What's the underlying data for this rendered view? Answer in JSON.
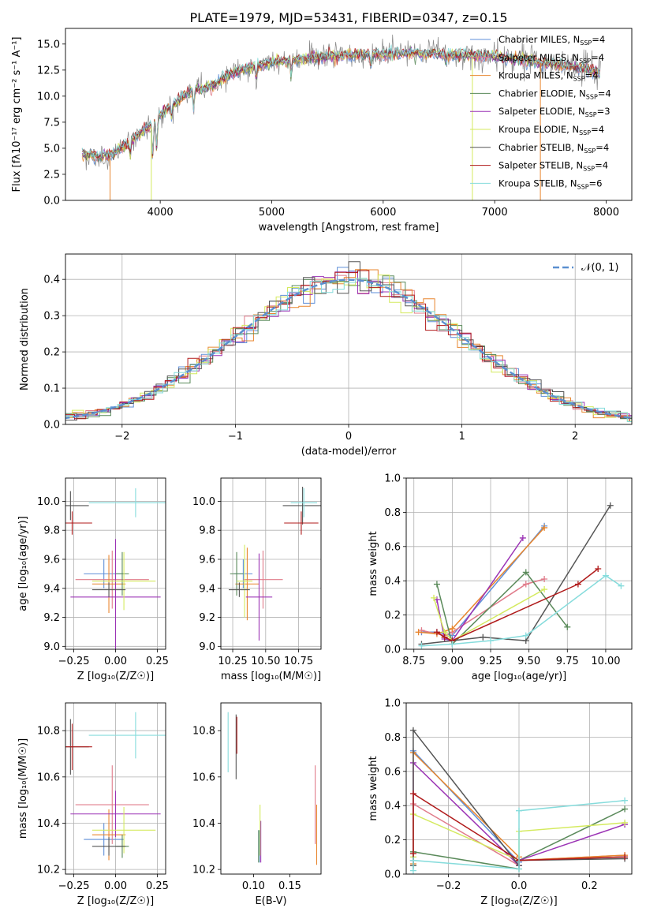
{
  "colors": {
    "chab_miles": "#5f8fd8",
    "salp_miles": "#e07b8a",
    "krou_miles": "#e8862e",
    "chab_elodie": "#5a8a5a",
    "salp_elodie": "#9b33b5",
    "krou_elodie": "#d4ea5e",
    "chab_stelib": "#555555",
    "salp_stelib": "#b01a1a",
    "krou_stelib": "#86dcdc",
    "data_gray": "#888888",
    "normal_curve": "#5b8fd0"
  },
  "chart_data": [
    {
      "id": "spectrum",
      "type": "line",
      "title": "PLATE=1979, MJD=53431, FIBERID=0347, z=0.15",
      "xlabel": "wavelength [Angstrom, rest frame]",
      "ylabel": "Flux [fλ10⁻¹⁷ erg cm⁻² s⁻¹ A⁻¹]",
      "xlim": [
        3150,
        8230
      ],
      "ylim": [
        0,
        16.5
      ],
      "xticks": [
        4000,
        5000,
        6000,
        7000,
        8000
      ],
      "yticks": [
        0.0,
        2.5,
        5.0,
        7.5,
        10.0,
        12.5,
        15.0
      ],
      "continuum": {
        "x": [
          3300,
          3450,
          3550,
          3650,
          3750,
          3850,
          3950,
          4000,
          4100,
          4200,
          4300,
          4400,
          4500,
          4600,
          4700,
          4800,
          5000,
          5200,
          5400,
          5600,
          5800,
          6000,
          6200,
          6400,
          6600,
          6800,
          7000,
          7200,
          7400,
          7600,
          7800,
          7950
        ],
        "y": [
          4.4,
          4.2,
          4.3,
          5.0,
          5.8,
          6.7,
          7.5,
          8.2,
          9.0,
          10.0,
          10.6,
          10.7,
          11.2,
          12.0,
          12.4,
          12.8,
          13.2,
          13.5,
          13.7,
          13.9,
          14.0,
          14.0,
          14.1,
          14.1,
          14.0,
          13.9,
          13.8,
          13.5,
          13.2,
          13.0,
          12.7,
          12.2
        ]
      },
      "legend": [
        {
          "label": "Chabrier MILES, N",
          "sub": "SSP",
          "tail": "=4",
          "color": "chab_miles"
        },
        {
          "label": "Salpeter MILES, N",
          "sub": "SSP",
          "tail": "=4",
          "color": "salp_miles"
        },
        {
          "label": "Kroupa MILES, N",
          "sub": "SSP",
          "tail": "=4",
          "color": "krou_miles"
        },
        {
          "label": "Chabrier ELODIE, N",
          "sub": "SSP",
          "tail": "=4",
          "color": "chab_elodie"
        },
        {
          "label": "Salpeter ELODIE, N",
          "sub": "SSP",
          "tail": "=3",
          "color": "salp_elodie"
        },
        {
          "label": "Kroupa ELODIE, N",
          "sub": "SSP",
          "tail": "=4",
          "color": "krou_elodie"
        },
        {
          "label": "Chabrier STELIB, N",
          "sub": "SSP",
          "tail": "=4",
          "color": "chab_stelib"
        },
        {
          "label": "Salpeter STELIB, N",
          "sub": "SSP",
          "tail": "=4",
          "color": "salp_stelib"
        },
        {
          "label": "Kroupa STELIB, N",
          "sub": "SSP",
          "tail": "=6",
          "color": "krou_stelib"
        }
      ],
      "vertical_drops": [
        {
          "x": 3550,
          "color": "krou_miles"
        },
        {
          "x": 3920,
          "color": "krou_elodie"
        },
        {
          "x": 6800,
          "color": "krou_elodie"
        },
        {
          "x": 7410,
          "color": "krou_miles"
        }
      ]
    },
    {
      "id": "residuals",
      "type": "histogram",
      "xlabel": "(data-model)/error",
      "ylabel": "Normed distribution",
      "xlim": [
        -2.5,
        2.5
      ],
      "ylim": [
        0,
        0.47
      ],
      "xticks": [
        -2,
        -1,
        0,
        1,
        2
      ],
      "yticks": [
        0.0,
        0.1,
        0.2,
        0.3,
        0.4
      ],
      "grid": true,
      "curve_label": "𝒩(0, 1)",
      "legend_position": "top-right",
      "bin_width": 0.1,
      "bin_start": -2.5
    },
    {
      "id": "z_age",
      "type": "errorbar",
      "xlabel": "Z [log₁₀(Z/Z☉)]",
      "ylabel": "age  [log₁₀(age/yr)]",
      "xlim": [
        -0.3,
        0.3
      ],
      "ylim": [
        8.98,
        10.16
      ],
      "xticks": [
        -0.25,
        0.0,
        0.25
      ],
      "xticklabels": [
        "−0.25",
        "0.00",
        "0.25"
      ],
      "yticks": [
        9.0,
        9.2,
        9.4,
        9.6,
        9.8,
        10.0
      ],
      "grid": true,
      "points": [
        {
          "x": -0.07,
          "xerr": 0.12,
          "y": 9.5,
          "yerr": 0.1,
          "color": "chab_miles"
        },
        {
          "x": -0.02,
          "xerr": 0.22,
          "y": 9.46,
          "yerr": 0.2,
          "color": "salp_miles"
        },
        {
          "x": -0.04,
          "xerr": 0.1,
          "y": 9.43,
          "yerr": 0.2,
          "color": "krou_miles"
        },
        {
          "x": 0.04,
          "xerr": 0.04,
          "y": 9.5,
          "yerr": 0.15,
          "color": "chab_elodie"
        },
        {
          "x": 0.0,
          "xerr": 0.27,
          "y": 9.34,
          "yerr": 0.4,
          "color": "salp_elodie"
        },
        {
          "x": 0.05,
          "xerr": 0.19,
          "y": 9.45,
          "yerr": 0.2,
          "color": "krou_elodie"
        },
        {
          "x": -0.27,
          "xerr": 0.11,
          "y": 9.97,
          "yerr": 0.1,
          "color": "chab_stelib"
        },
        {
          "x": -0.26,
          "xerr": 0.12,
          "y": 9.85,
          "yerr": 0.08,
          "color": "salp_stelib"
        },
        {
          "x": 0.12,
          "xerr": 0.28,
          "y": 9.99,
          "yerr": 0.1,
          "color": "krou_stelib"
        },
        {
          "x": -0.04,
          "xerr": 0.1,
          "y": 9.39,
          "yerr": 0.05,
          "color": "chab_stelib"
        }
      ]
    },
    {
      "id": "mass_age",
      "type": "errorbar",
      "xlabel": "mass [log₁₀(M/M☉)]",
      "ylabel": "",
      "xlim": [
        10.16,
        10.92
      ],
      "ylim": [
        8.98,
        10.16
      ],
      "xticks": [
        10.25,
        10.5,
        10.75
      ],
      "xticklabels": [
        "10.25",
        "10.50",
        "10.75"
      ],
      "yticks": [
        9.0,
        9.2,
        9.4,
        9.6,
        9.8,
        10.0
      ],
      "grid": true,
      "points": [
        {
          "x": 10.33,
          "xerr": 0.07,
          "y": 9.5,
          "yerr": 0.1,
          "color": "chab_miles"
        },
        {
          "x": 10.48,
          "xerr": 0.15,
          "y": 9.46,
          "yerr": 0.2,
          "color": "salp_miles"
        },
        {
          "x": 10.36,
          "xerr": 0.09,
          "y": 9.43,
          "yerr": 0.25,
          "color": "krou_miles"
        },
        {
          "x": 10.28,
          "xerr": 0.05,
          "y": 9.5,
          "yerr": 0.15,
          "color": "chab_elodie"
        },
        {
          "x": 10.45,
          "xerr": 0.1,
          "y": 9.34,
          "yerr": 0.3,
          "color": "salp_elodie"
        },
        {
          "x": 10.34,
          "xerr": 0.06,
          "y": 9.45,
          "yerr": 0.25,
          "color": "krou_elodie"
        },
        {
          "x": 10.78,
          "xerr": 0.15,
          "y": 9.97,
          "yerr": 0.13,
          "color": "chab_stelib"
        },
        {
          "x": 10.77,
          "xerr": 0.13,
          "y": 9.85,
          "yerr": 0.08,
          "color": "salp_stelib"
        },
        {
          "x": 10.79,
          "xerr": 0.1,
          "y": 9.99,
          "yerr": 0.1,
          "color": "krou_stelib"
        },
        {
          "x": 10.3,
          "xerr": 0.08,
          "y": 9.39,
          "yerr": 0.05,
          "color": "chab_stelib"
        }
      ]
    },
    {
      "id": "age_weight",
      "type": "line",
      "xlabel": "age  [log₁₀(age/yr)]",
      "ylabel": "mass weight",
      "xlim": [
        8.7,
        10.17
      ],
      "ylim": [
        0,
        1.0
      ],
      "xticks": [
        8.75,
        9.0,
        9.25,
        9.5,
        9.75,
        10.0
      ],
      "xticklabels": [
        "8.75",
        "9.00",
        "9.25",
        "9.50",
        "9.75",
        "10.00"
      ],
      "yticks": [
        0.0,
        0.2,
        0.4,
        0.6,
        0.8,
        1.0
      ],
      "grid": true,
      "series": [
        {
          "color": "chab_miles",
          "x": [
            8.8,
            8.9,
            9.0,
            9.6
          ],
          "y": [
            0.1,
            0.1,
            0.08,
            0.72
          ]
        },
        {
          "color": "salp_miles",
          "x": [
            8.8,
            8.95,
            9.0,
            9.48,
            9.6
          ],
          "y": [
            0.11,
            0.08,
            0.1,
            0.38,
            0.41
          ]
        },
        {
          "color": "krou_miles",
          "x": [
            8.78,
            8.9,
            9.0,
            9.6
          ],
          "y": [
            0.1,
            0.09,
            0.12,
            0.71
          ]
        },
        {
          "color": "chab_elodie",
          "x": [
            8.9,
            9.0,
            9.48,
            9.75
          ],
          "y": [
            0.38,
            0.03,
            0.45,
            0.13
          ]
        },
        {
          "color": "salp_elodie",
          "x": [
            8.9,
            8.95,
            9.0,
            9.46
          ],
          "y": [
            0.29,
            0.06,
            0.05,
            0.65
          ]
        },
        {
          "color": "krou_elodie",
          "x": [
            8.88,
            8.95,
            9.0,
            9.6
          ],
          "y": [
            0.3,
            0.1,
            0.05,
            0.35
          ]
        },
        {
          "color": "chab_stelib",
          "x": [
            8.8,
            9.0,
            9.2,
            9.48,
            10.03
          ],
          "y": [
            0.03,
            0.05,
            0.07,
            0.05,
            0.84
          ]
        },
        {
          "color": "salp_stelib",
          "x": [
            8.9,
            8.95,
            9.0,
            9.82,
            9.95
          ],
          "y": [
            0.1,
            0.07,
            0.05,
            0.38,
            0.47
          ]
        },
        {
          "color": "krou_stelib",
          "x": [
            8.8,
            9.0,
            9.25,
            9.48,
            10.0,
            10.1
          ],
          "y": [
            0.02,
            0.03,
            0.05,
            0.08,
            0.43,
            0.37
          ]
        }
      ]
    },
    {
      "id": "z_mass",
      "type": "errorbar",
      "xlabel": "Z [log₁₀(Z/Z☉)]",
      "ylabel": "mass [log₁₀(M/M☉)]",
      "xlim": [
        -0.3,
        0.3
      ],
      "ylim": [
        10.18,
        10.92
      ],
      "xticks": [
        -0.25,
        0.0,
        0.25
      ],
      "xticklabels": [
        "−0.25",
        "0.00",
        "0.25"
      ],
      "yticks": [
        10.2,
        10.4,
        10.6,
        10.8
      ],
      "grid": true,
      "points": [
        {
          "x": -0.07,
          "xerr": 0.12,
          "y": 10.33,
          "yerr": 0.07,
          "color": "chab_miles"
        },
        {
          "x": -0.02,
          "xerr": 0.22,
          "y": 10.48,
          "yerr": 0.17,
          "color": "salp_miles"
        },
        {
          "x": -0.04,
          "xerr": 0.1,
          "y": 10.35,
          "yerr": 0.11,
          "color": "krou_miles"
        },
        {
          "x": 0.04,
          "xerr": 0.04,
          "y": 10.3,
          "yerr": 0.05,
          "color": "chab_elodie"
        },
        {
          "x": 0.0,
          "xerr": 0.27,
          "y": 10.44,
          "yerr": 0.1,
          "color": "salp_elodie"
        },
        {
          "x": 0.05,
          "xerr": 0.19,
          "y": 10.37,
          "yerr": 0.1,
          "color": "krou_elodie"
        },
        {
          "x": -0.27,
          "xerr": 0.11,
          "y": 10.73,
          "yerr": 0.12,
          "color": "chab_stelib"
        },
        {
          "x": -0.26,
          "xerr": 0.12,
          "y": 10.73,
          "yerr": 0.1,
          "color": "salp_stelib"
        },
        {
          "x": 0.12,
          "xerr": 0.28,
          "y": 10.78,
          "yerr": 0.1,
          "color": "krou_stelib"
        },
        {
          "x": -0.04,
          "xerr": 0.1,
          "y": 10.3,
          "yerr": 0.04,
          "color": "chab_stelib"
        }
      ]
    },
    {
      "id": "ebv_mass",
      "type": "errorbar",
      "xlabel": "E(B-V)",
      "ylabel": "",
      "xlim": [
        0.055,
        0.193
      ],
      "ylim": [
        10.18,
        10.92
      ],
      "xticks": [
        0.1,
        0.15
      ],
      "xticklabels": [
        "0.10",
        "0.15"
      ],
      "yticks": [
        10.2,
        10.4,
        10.6,
        10.8
      ],
      "grid": false,
      "points": [
        {
          "x": 0.108,
          "y": 10.3,
          "yerr": 0.07,
          "color": "chab_miles"
        },
        {
          "x": 0.185,
          "y": 10.48,
          "yerr": 0.17,
          "color": "salp_miles"
        },
        {
          "x": 0.187,
          "y": 10.35,
          "yerr": 0.13,
          "color": "krou_miles"
        },
        {
          "x": 0.107,
          "y": 10.3,
          "yerr": 0.07,
          "color": "chab_elodie"
        },
        {
          "x": 0.11,
          "y": 10.32,
          "yerr": 0.09,
          "color": "salp_elodie"
        },
        {
          "x": 0.109,
          "y": 10.37,
          "yerr": 0.11,
          "color": "krou_elodie"
        },
        {
          "x": 0.076,
          "y": 10.73,
          "yerr": 0.14,
          "color": "chab_stelib"
        },
        {
          "x": 0.077,
          "y": 10.78,
          "yerr": 0.08,
          "color": "salp_stelib"
        },
        {
          "x": 0.065,
          "y": 10.75,
          "yerr": 0.13,
          "color": "krou_stelib"
        }
      ]
    },
    {
      "id": "z_weight",
      "type": "line",
      "xlabel": "Z [log₁₀(Z/Z☉)]",
      "ylabel": "mass weight",
      "xlim": [
        -0.32,
        0.32
      ],
      "ylim": [
        0,
        1.0
      ],
      "xticks": [
        -0.2,
        0.0,
        0.2
      ],
      "xticklabels": [
        "−0.2",
        "0.0",
        "0.2"
      ],
      "yticks": [
        0.0,
        0.2,
        0.4,
        0.6,
        0.8,
        1.0
      ],
      "grid": true,
      "series": [
        {
          "color": "chab_miles",
          "x": [
            -0.3,
            -0.3,
            0.0,
            0.0,
            0.3
          ],
          "y": [
            0.05,
            0.72,
            0.07,
            0.08,
            0.1
          ]
        },
        {
          "color": "salp_miles",
          "x": [
            -0.3,
            -0.3,
            0.0,
            0.0,
            0.3
          ],
          "y": [
            0.08,
            0.41,
            0.05,
            0.08,
            0.11
          ]
        },
        {
          "color": "krou_miles",
          "x": [
            -0.3,
            -0.3,
            0.0,
            0.0,
            0.3
          ],
          "y": [
            0.06,
            0.71,
            0.1,
            0.08,
            0.11
          ]
        },
        {
          "color": "chab_elodie",
          "x": [
            -0.3,
            -0.3,
            0.0,
            0.0,
            0.3
          ],
          "y": [
            0.05,
            0.13,
            0.03,
            0.08,
            0.38
          ]
        },
        {
          "color": "salp_elodie",
          "x": [
            -0.3,
            -0.3,
            0.0,
            0.0,
            0.3
          ],
          "y": [
            0.08,
            0.65,
            0.05,
            0.08,
            0.29
          ]
        },
        {
          "color": "krou_elodie",
          "x": [
            -0.3,
            -0.3,
            0.0,
            0.0,
            0.3
          ],
          "y": [
            0.1,
            0.35,
            0.08,
            0.25,
            0.3
          ]
        },
        {
          "color": "chab_stelib",
          "x": [
            -0.3,
            -0.3,
            0.0,
            0.0,
            0.3
          ],
          "y": [
            0.05,
            0.84,
            0.05,
            0.08,
            0.09
          ]
        },
        {
          "color": "salp_stelib",
          "x": [
            -0.3,
            -0.3,
            0.0,
            0.0,
            0.3
          ],
          "y": [
            0.12,
            0.47,
            0.08,
            0.08,
            0.1
          ]
        },
        {
          "color": "krou_stelib",
          "x": [
            -0.3,
            -0.3,
            0.0,
            0.0,
            0.3
          ],
          "y": [
            0.02,
            0.08,
            0.03,
            0.37,
            0.43
          ]
        }
      ]
    }
  ]
}
